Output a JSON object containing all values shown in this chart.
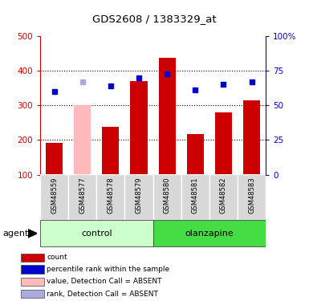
{
  "title": "GDS2608 / 1383329_at",
  "samples": [
    "GSM48559",
    "GSM48577",
    "GSM48578",
    "GSM48579",
    "GSM48580",
    "GSM48581",
    "GSM48582",
    "GSM48583"
  ],
  "bar_values": [
    192,
    300,
    238,
    370,
    437,
    218,
    280,
    315
  ],
  "bar_colors": [
    "#cc0000",
    "#ffbbbb",
    "#cc0000",
    "#cc0000",
    "#cc0000",
    "#cc0000",
    "#cc0000",
    "#cc0000"
  ],
  "rank_values": [
    60,
    67,
    64,
    70,
    73,
    61,
    65,
    67
  ],
  "rank_colors": [
    "#0000cc",
    "#aaaadd",
    "#0000cc",
    "#0000cc",
    "#0000cc",
    "#0000cc",
    "#0000cc",
    "#0000cc"
  ],
  "groups": [
    {
      "label": "control",
      "indices": [
        0,
        1,
        2,
        3
      ],
      "color_light": "#ccffcc",
      "color_dark": "#55dd55"
    },
    {
      "label": "olanzapine",
      "indices": [
        4,
        5,
        6,
        7
      ],
      "color_light": "#44dd44",
      "color_dark": "#44dd44"
    }
  ],
  "ylim_left": [
    100,
    500
  ],
  "ylim_right": [
    0,
    100
  ],
  "yticks_left": [
    100,
    200,
    300,
    400,
    500
  ],
  "yticks_right": [
    0,
    25,
    50,
    75,
    100
  ],
  "yticklabels_right": [
    "0",
    "25",
    "50",
    "75",
    "100%"
  ],
  "left_axis_color": "#cc0000",
  "right_axis_color": "#0000cc",
  "grid_yticks": [
    200,
    300,
    400
  ],
  "legend_items": [
    {
      "label": "count",
      "color": "#cc0000"
    },
    {
      "label": "percentile rank within the sample",
      "color": "#0000cc"
    },
    {
      "label": "value, Detection Call = ABSENT",
      "color": "#ffbbbb"
    },
    {
      "label": "rank, Detection Call = ABSENT",
      "color": "#aaaadd"
    }
  ],
  "agent_label": "agent",
  "figsize": [
    3.85,
    3.75
  ],
  "dpi": 100
}
